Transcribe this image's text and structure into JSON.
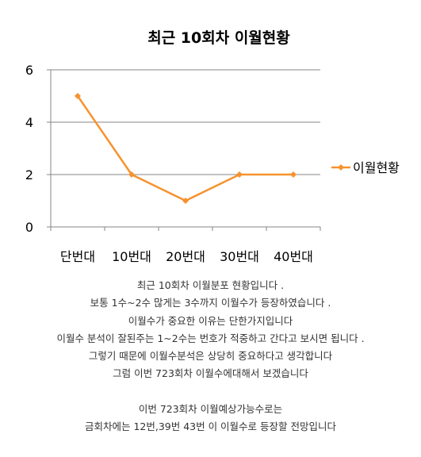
{
  "chart_data": {
    "type": "line",
    "title": "최근 10회차 이월현황",
    "categories": [
      "단번대",
      "10번대",
      "20번대",
      "30번대",
      "40번대"
    ],
    "series": [
      {
        "name": "이월현황",
        "values": [
          5,
          2,
          1,
          2,
          2
        ],
        "color": "#f7922e"
      }
    ],
    "ylim": [
      0,
      6
    ],
    "yticks": [
      0,
      2,
      4,
      6
    ],
    "grid": true,
    "gridlines": [
      2,
      4,
      6
    ],
    "legend": "right",
    "marker": "diamond",
    "axis_color": "#868686",
    "grid_color": "#868686"
  },
  "caption": {
    "lines": [
      "최근 10회차 이월분포 현황입니다 .",
      "보통 1수~2수 많게는 3수까지 이월수가 등장하였습니다 .",
      "이월수가 중요한 이유는 단한가지입니다",
      "이월수 분석이 잘된주는 1~2수는 번호가 적중하고 간다고 보시면 됩니다 .",
      "그렇기 때문에 이월수분석은 상당히 중요하다고 생각합니다",
      "그럼 이번 723회차 이월수에대해서 보겠습니다",
      "",
      "이번 723회차 이월예상가능수로는",
      "금회차에는 12번,39번 43번 이 이월수로 등장할 전망입니다"
    ]
  }
}
